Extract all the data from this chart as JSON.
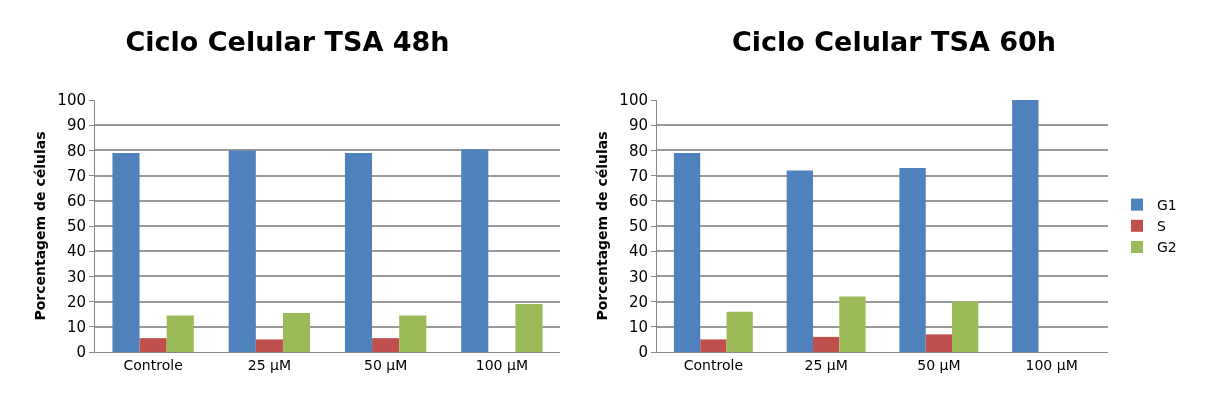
{
  "chart_data": [
    {
      "type": "bar",
      "title": "Ciclo Celular TSA 48h",
      "ylabel": "Porcentagem de células",
      "categories": [
        "Controle",
        "25 µM",
        "50 µM",
        "100 µM"
      ],
      "series": [
        {
          "color": "#4f81bd",
          "values": [
            79,
            80,
            79,
            80.5
          ]
        },
        {
          "color": "#c0504d",
          "values": [
            5.5,
            5,
            5.5,
            0
          ]
        },
        {
          "color": "#9bbb59",
          "values": [
            14.5,
            15.5,
            14.5,
            19
          ]
        }
      ],
      "ylim": [
        0,
        100
      ],
      "yticks": [
        0,
        10,
        20,
        30,
        40,
        50,
        60,
        70,
        80,
        90,
        100
      ],
      "grid": "y",
      "legend": false
    },
    {
      "type": "bar",
      "title": "Ciclo Celular TSA 60h",
      "ylabel": "Porcentagem de células",
      "categories": [
        "Controle",
        "25 µM",
        "50 µM",
        "100 µM"
      ],
      "series": [
        {
          "name": "G1",
          "color": "#4f81bd",
          "values": [
            79,
            72,
            73,
            100
          ]
        },
        {
          "name": "S",
          "color": "#c0504d",
          "values": [
            5,
            6,
            7,
            0
          ]
        },
        {
          "name": "G2",
          "color": "#9bbb59",
          "values": [
            16,
            22,
            20,
            0
          ]
        }
      ],
      "ylim": [
        0,
        100
      ],
      "yticks": [
        0,
        10,
        20,
        30,
        40,
        50,
        60,
        70,
        80,
        90,
        100
      ],
      "grid": "y",
      "legend": "right"
    }
  ]
}
